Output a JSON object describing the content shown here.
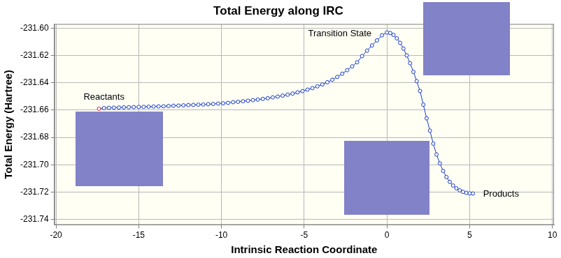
{
  "chart_data": {
    "type": "line",
    "title": "Total Energy along IRC",
    "x_label": "Intrinsic Reaction Coordinate",
    "y_label": "Total Energy (Hartree)",
    "x": [
      -17.4,
      -17.1,
      -16.8,
      -16.5,
      -16.2,
      -15.9,
      -15.6,
      -15.3,
      -15.0,
      -14.7,
      -14.4,
      -14.1,
      -13.8,
      -13.5,
      -13.2,
      -12.9,
      -12.6,
      -12.3,
      -12.0,
      -11.7,
      -11.4,
      -11.1,
      -10.8,
      -10.5,
      -10.2,
      -9.9,
      -9.6,
      -9.3,
      -9.0,
      -8.7,
      -8.4,
      -8.1,
      -7.8,
      -7.5,
      -7.2,
      -6.9,
      -6.6,
      -6.3,
      -6.0,
      -5.7,
      -5.4,
      -5.1,
      -4.8,
      -4.5,
      -4.2,
      -3.9,
      -3.6,
      -3.3,
      -3.0,
      -2.7,
      -2.4,
      -2.1,
      -1.8,
      -1.5,
      -1.2,
      -0.9,
      -0.6,
      -0.3,
      0.0,
      0.2,
      0.4,
      0.6,
      0.8,
      1.0,
      1.2,
      1.4,
      1.6,
      1.8,
      2.0,
      2.2,
      2.4,
      2.6,
      2.8,
      3.0,
      3.2,
      3.4,
      3.6,
      3.8,
      4.0,
      4.2,
      4.4,
      4.6,
      4.8,
      5.0,
      5.2
    ],
    "values": [
      -231.659,
      -231.6585,
      -231.6583,
      -231.6582,
      -231.6581,
      -231.658,
      -231.6579,
      -231.6578,
      -231.6577,
      -231.6576,
      -231.6575,
      -231.6574,
      -231.6573,
      -231.6572,
      -231.657,
      -231.6568,
      -231.6567,
      -231.6565,
      -231.6563,
      -231.6562,
      -231.656,
      -231.6559,
      -231.6557,
      -231.6555,
      -231.6552,
      -231.655,
      -231.6547,
      -231.6542,
      -231.6539,
      -231.6535,
      -231.6531,
      -231.6527,
      -231.6523,
      -231.6518,
      -231.6513,
      -231.6507,
      -231.6501,
      -231.6494,
      -231.6487,
      -231.6479,
      -231.647,
      -231.6461,
      -231.645,
      -231.6439,
      -231.6426,
      -231.6412,
      -231.6396,
      -231.6378,
      -231.6357,
      -231.6334,
      -231.6308,
      -231.628,
      -231.625,
      -231.6205,
      -231.6165,
      -231.6127,
      -231.609,
      -231.6053,
      -231.6032,
      -231.6036,
      -231.605,
      -231.6075,
      -231.6108,
      -231.615,
      -231.62,
      -231.6257,
      -231.632,
      -231.6388,
      -231.646,
      -231.656,
      -231.666,
      -231.675,
      -231.6845,
      -231.6925,
      -231.699,
      -231.7045,
      -231.709,
      -231.7125,
      -231.7152,
      -231.7172,
      -231.7187,
      -231.7198,
      -231.7205,
      -231.7209,
      -231.721
    ],
    "color": "#1a3cc8",
    "marker": "circle",
    "line_style": "solid",
    "xlim": [
      -20.1,
      10.1
    ],
    "xticks": [
      -20,
      -15,
      -10,
      -5,
      0,
      5,
      10
    ],
    "ylim": [
      -231.744,
      -231.597
    ],
    "yticks": [
      -231.74,
      -231.72,
      {
        "value": -231.7,
        "label": "-231.70"
      },
      -231.68,
      -231.66,
      -231.64,
      -231.62,
      {
        "value": -231.6,
        "label": "-231.60"
      }
    ],
    "grid": true,
    "annotations": [
      {
        "text": "Reactants",
        "x": -17.1,
        "y": -231.6505
      },
      {
        "text": "Transition State",
        "x": -2.85,
        "y": -231.604
      },
      {
        "text": "Products",
        "x": 6.9,
        "y": -231.7215
      }
    ]
  }
}
